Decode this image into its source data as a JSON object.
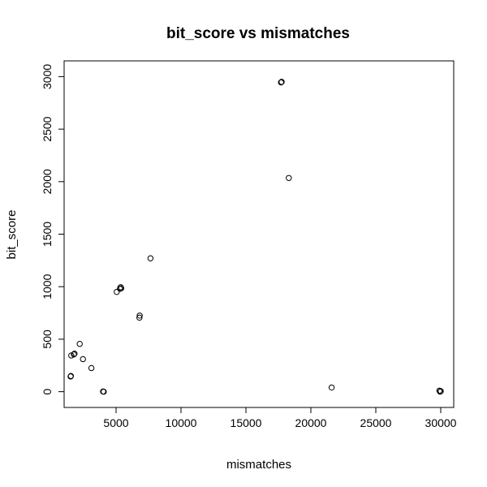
{
  "chart_data": {
    "type": "scatter",
    "title": "bit_score vs mismatches",
    "xlabel": "mismatches",
    "ylabel": "bit_score",
    "xlim": [
      1000,
      31000
    ],
    "ylim": [
      -150,
      3150
    ],
    "x_ticks": [
      5000,
      10000,
      15000,
      20000,
      25000,
      30000
    ],
    "y_ticks": [
      0,
      500,
      1000,
      1500,
      2000,
      2500,
      3000
    ],
    "grid": false,
    "legend": "none",
    "points": [
      {
        "x": 1500,
        "y": 145
      },
      {
        "x": 1520,
        "y": 150
      },
      {
        "x": 1550,
        "y": 345
      },
      {
        "x": 1750,
        "y": 355
      },
      {
        "x": 1800,
        "y": 362
      },
      {
        "x": 2200,
        "y": 455
      },
      {
        "x": 2450,
        "y": 310
      },
      {
        "x": 3100,
        "y": 225
      },
      {
        "x": 4000,
        "y": 2
      },
      {
        "x": 4050,
        "y": 0
      },
      {
        "x": 5050,
        "y": 950
      },
      {
        "x": 5300,
        "y": 980
      },
      {
        "x": 5350,
        "y": 995
      },
      {
        "x": 5400,
        "y": 985
      },
      {
        "x": 6800,
        "y": 705
      },
      {
        "x": 6820,
        "y": 725
      },
      {
        "x": 7650,
        "y": 1270
      },
      {
        "x": 17700,
        "y": 2945
      },
      {
        "x": 17750,
        "y": 2950
      },
      {
        "x": 18300,
        "y": 2035
      },
      {
        "x": 21600,
        "y": 40
      },
      {
        "x": 29900,
        "y": 10
      },
      {
        "x": 29950,
        "y": 0
      },
      {
        "x": 30000,
        "y": 5
      }
    ]
  }
}
